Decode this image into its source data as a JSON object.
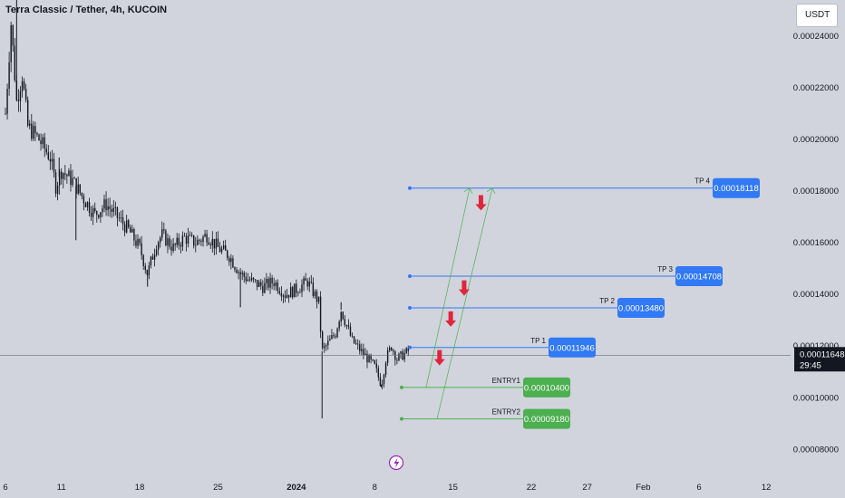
{
  "header": {
    "title": "Terra Classic / Tether, 4h, KUCOIN",
    "currency": "USDT"
  },
  "colors": {
    "background": "#d1d4dc",
    "candle": "#131722",
    "target_line": "#3179f5",
    "entry_line": "#4caf50",
    "arrow": "#e0263d",
    "price_box": "#131722",
    "axis_text": "#131722"
  },
  "chart_data": {
    "type": "candlestick",
    "symbol": "LUNC/USDT",
    "timeframe": "4h",
    "ylim": [
      7.1e-05,
      0.000254
    ],
    "y_ticks": [
      "0.00024000",
      "0.00022000",
      "0.00020000",
      "0.00018000",
      "0.00016000",
      "0.00014000",
      "0.00012000",
      "0.00010000",
      "0.00008000"
    ],
    "x_ticks": [
      {
        "label": "6",
        "day": 0
      },
      {
        "label": "11",
        "day": 5
      },
      {
        "label": "18",
        "day": 12
      },
      {
        "label": "25",
        "day": 19
      },
      {
        "label": "2024",
        "day": 26
      },
      {
        "label": "8",
        "day": 33
      },
      {
        "label": "15",
        "day": 40
      },
      {
        "label": "22",
        "day": 47
      },
      {
        "label": "27",
        "day": 52
      },
      {
        "label": "Feb",
        "day": 57
      },
      {
        "label": "6",
        "day": 62
      },
      {
        "label": "12",
        "day": 68
      }
    ],
    "price_path": [
      [
        0,
        0.00021
      ],
      [
        0.5,
        0.000245
      ],
      [
        1,
        0.000215
      ],
      [
        1.5,
        0.000225
      ],
      [
        2,
        0.000205
      ],
      [
        3,
        0.0002
      ],
      [
        4,
        0.000193
      ],
      [
        4.5,
        0.000182
      ],
      [
        5,
        0.000188
      ],
      [
        6,
        0.000184
      ],
      [
        7,
        0.000177
      ],
      [
        8,
        0.000171
      ],
      [
        9,
        0.000175
      ],
      [
        10,
        0.00017
      ],
      [
        11,
        0.000165
      ],
      [
        12,
        0.000158
      ],
      [
        12.7,
        0.000148
      ],
      [
        13.5,
        0.00016
      ],
      [
        14,
        0.000163
      ],
      [
        15,
        0.000158
      ],
      [
        16,
        0.000162
      ],
      [
        17,
        0.00016
      ],
      [
        18,
        0.000163
      ],
      [
        19,
        0.000158
      ],
      [
        20,
        0.000155
      ],
      [
        21,
        0.000148
      ],
      [
        22,
        0.000145
      ],
      [
        23,
        0.000143
      ],
      [
        24,
        0.000145
      ],
      [
        25,
        0.00014
      ],
      [
        26,
        0.000142
      ],
      [
        27,
        0.000145
      ],
      [
        28,
        0.000137
      ],
      [
        28.3,
        0.000118
      ],
      [
        29,
        0.000122
      ],
      [
        29.5,
        0.000125
      ],
      [
        30,
        0.000134
      ],
      [
        31,
        0.000122
      ],
      [
        32,
        0.000117
      ],
      [
        33,
        0.000112
      ],
      [
        33.6,
        0.000105
      ],
      [
        34,
        0.000115
      ],
      [
        34.5,
        0.00012
      ],
      [
        35,
        0.000115
      ],
      [
        36,
        0.000118
      ]
    ],
    "wicks": [
      [
        1,
        0.000255
      ],
      [
        4.8,
        0.000193
      ],
      [
        6.3,
        0.000161
      ],
      [
        12.7,
        0.000143
      ],
      [
        21,
        0.000135
      ],
      [
        28.3,
        9.2e-05
      ],
      [
        30,
        0.000137
      ],
      [
        33.6,
        0.000104
      ]
    ],
    "current_price": {
      "value": "0.00011648",
      "countdown": "29:45",
      "y": 0.00011648
    },
    "levels": [
      {
        "kind": "tp",
        "label": "TP 4",
        "value": "0.00018118",
        "y": 0.00018118
      },
      {
        "kind": "tp",
        "label": "TP 3",
        "value": "0.00014708",
        "y": 0.00014708
      },
      {
        "kind": "tp",
        "label": "TP 2",
        "value": "0.00013480",
        "y": 0.0001348
      },
      {
        "kind": "tp",
        "label": "TP 1",
        "value": "0.00011946",
        "y": 0.00011946
      },
      {
        "kind": "entry",
        "label": "ENTRY1",
        "value": "0.00010400",
        "y": 0.000104
      },
      {
        "kind": "entry",
        "label": "ENTRY2",
        "value": "0.00009180",
        "y": 9.18e-05
      }
    ],
    "arrows": [
      {
        "day": 42.5,
        "y": 0.000176
      },
      {
        "day": 41.0,
        "y": 0.000143
      },
      {
        "day": 39.8,
        "y": 0.000131
      },
      {
        "day": 38.8,
        "y": 0.000116
      }
    ]
  }
}
